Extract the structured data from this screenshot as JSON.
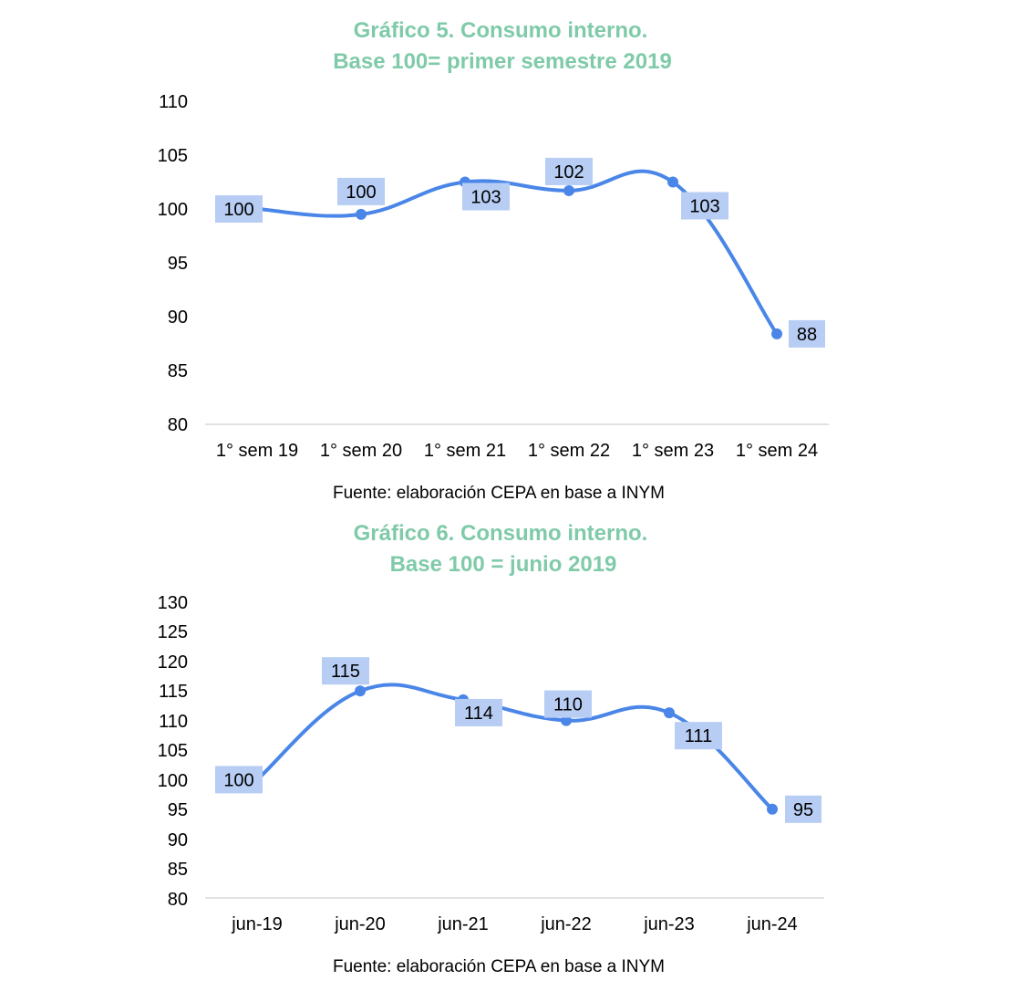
{
  "chart_data": [
    {
      "type": "line",
      "title_line1": "Gráfico 5. Consumo interno.",
      "title_line2": "Base 100= primer semestre 2019",
      "categories": [
        "1° sem 19",
        "1° sem 20",
        "1° sem 21",
        "1° sem 22",
        "1° sem 23",
        "1° sem 24"
      ],
      "values": [
        100,
        99.5,
        102.5,
        101.7,
        102.5,
        88.4
      ],
      "data_labels": [
        "100",
        "100",
        "103",
        "102",
        "103",
        "88"
      ],
      "ylim": [
        80,
        110
      ],
      "yticks": [
        "110",
        "105",
        "100",
        "95",
        "90",
        "85",
        "80"
      ],
      "grid": false,
      "smooth": true,
      "source": "Fuente: elaboración CEPA en base a INYM",
      "color": "#4a86e8"
    },
    {
      "type": "line",
      "title_line1": "Gráfico 6. Consumo interno.",
      "title_line2": "Base 100 = junio 2019",
      "categories": [
        "jun-19",
        "jun-20",
        "jun-21",
        "jun-22",
        "jun-23",
        "jun-24"
      ],
      "values": [
        100,
        115,
        113.5,
        110,
        111.3,
        95
      ],
      "data_labels": [
        "100",
        "115",
        "114",
        "110",
        "111",
        "95"
      ],
      "ylim": [
        80,
        130
      ],
      "yticks": [
        "130",
        "125",
        "120",
        "115",
        "110",
        "105",
        "100",
        "95",
        "90",
        "85",
        "80"
      ],
      "grid": false,
      "smooth": true,
      "source": "Fuente: elaboración CEPA en base a INYM",
      "color": "#4a86e8"
    }
  ]
}
